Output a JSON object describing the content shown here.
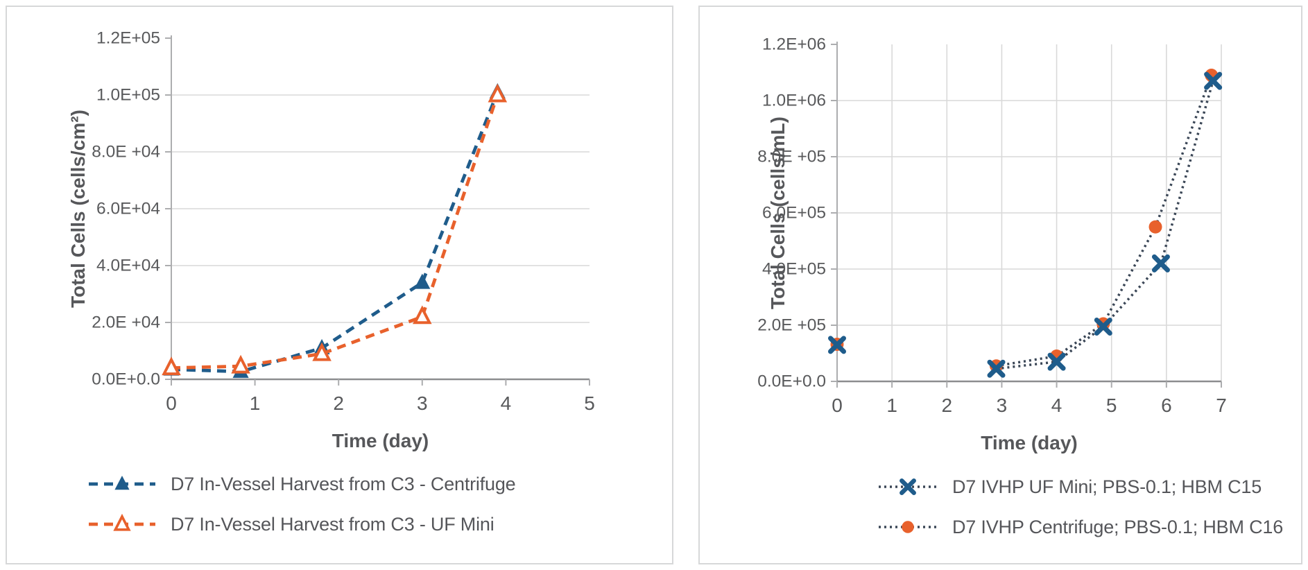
{
  "figure": {
    "description": "Two cell-growth line charts with bottom legends",
    "panels": [
      "left",
      "right"
    ]
  },
  "chart_data": [
    {
      "type": "line",
      "title": "",
      "xlabel": "Time (day)",
      "ylabel": "Total Cells (cells/cm²)",
      "xlim": [
        0,
        5
      ],
      "ylim": [
        0,
        120000
      ],
      "xticks": [
        {
          "v": 0,
          "label": "0"
        },
        {
          "v": 1,
          "label": "1"
        },
        {
          "v": 2,
          "label": "2"
        },
        {
          "v": 3,
          "label": "3"
        },
        {
          "v": 4,
          "label": "4"
        },
        {
          "v": 5,
          "label": "5"
        }
      ],
      "yticks": [
        {
          "v": 0,
          "label": "0.0E+0.0"
        },
        {
          "v": 20000,
          "label": "2.0E +04"
        },
        {
          "v": 40000,
          "label": "4.0E+04"
        },
        {
          "v": 60000,
          "label": "6.0E+04"
        },
        {
          "v": 80000,
          "label": "8.0E +04"
        },
        {
          "v": 100000,
          "label": "1.0E+05"
        },
        {
          "v": 120000,
          "label": "1.2E+05"
        }
      ],
      "grid": {
        "horizontal": true,
        "vertical": false
      },
      "legend_position": "bottom",
      "draw_order": [
        0,
        1
      ],
      "series": [
        {
          "name": "D7 In-Vessel Harvest from C3 - Centrifuge",
          "color": "#1F5C8B",
          "line_color": "#1F5C8B",
          "line_style": "dashed",
          "marker": "triangle-filled",
          "line_start_index": 0,
          "points": [
            [
              0,
              3500
            ],
            [
              0.83,
              2700
            ],
            [
              1.8,
              11000
            ],
            [
              3.0,
              34000
            ],
            [
              3.9,
              101000
            ]
          ]
        },
        {
          "name": "D7 In-Vessel Harvest from C3 - UF Mini",
          "color": "#E8612C",
          "line_color": "#E8612C",
          "line_style": "dashed",
          "marker": "triangle-open",
          "line_start_index": 0,
          "points": [
            [
              0,
              4000
            ],
            [
              0.83,
              4600
            ],
            [
              1.8,
              9000
            ],
            [
              3.0,
              22000
            ],
            [
              3.9,
              100000
            ]
          ]
        }
      ]
    },
    {
      "type": "line",
      "title": "",
      "xlabel": "Time (day)",
      "ylabel": "Total Cells (cells/mL)",
      "xlim": [
        0,
        7
      ],
      "ylim": [
        0,
        1200000
      ],
      "xticks": [
        {
          "v": 0,
          "label": "0"
        },
        {
          "v": 1,
          "label": "1"
        },
        {
          "v": 2,
          "label": "2"
        },
        {
          "v": 3,
          "label": "3"
        },
        {
          "v": 4,
          "label": "4"
        },
        {
          "v": 5,
          "label": "5"
        },
        {
          "v": 6,
          "label": "6"
        },
        {
          "v": 7,
          "label": "7"
        }
      ],
      "yticks": [
        {
          "v": 0,
          "label": "0.0E+0.0"
        },
        {
          "v": 200000,
          "label": "2.0E +05"
        },
        {
          "v": 400000,
          "label": "4.0E+05"
        },
        {
          "v": 600000,
          "label": "6.0E+05"
        },
        {
          "v": 800000,
          "label": "8.0E +05"
        },
        {
          "v": 1000000,
          "label": "1.0E+06"
        },
        {
          "v": 1200000,
          "label": "1.2E+06"
        }
      ],
      "grid": {
        "horizontal": true,
        "vertical": true
      },
      "legend_position": "bottom",
      "draw_order": [
        1,
        0
      ],
      "series": [
        {
          "name": "D7 IVHP UF Mini; PBS-0.1; HBM C15",
          "color": "#1F5C8B",
          "line_color": "#3A4656",
          "line_style": "dotted",
          "marker": "x",
          "line_start_index": 1,
          "points": [
            [
              0,
              130000
            ],
            [
              2.9,
              45000
            ],
            [
              4.0,
              70000
            ],
            [
              4.85,
              195000
            ],
            [
              5.9,
              420000
            ],
            [
              6.85,
              1070000
            ]
          ]
        },
        {
          "name": "D7 IVHP Centrifuge; PBS-0.1; HBM C16",
          "color": "#E8612C",
          "line_color": "#3A4656",
          "line_style": "dotted",
          "marker": "circle",
          "line_start_index": 1,
          "points": [
            [
              0,
              132000
            ],
            [
              2.9,
              55000
            ],
            [
              4.0,
              90000
            ],
            [
              4.85,
              205000
            ],
            [
              5.8,
              550000
            ],
            [
              6.82,
              1090000
            ]
          ]
        }
      ]
    }
  ],
  "colors": {
    "grid": "#D9D9D9",
    "axis_y": "#ACADAF",
    "axis_x": "#8C8D8F",
    "tick_text": "#58595B",
    "title_text": "#56575A",
    "legend_text": "#55565A",
    "panel_border": "#D7D8D9",
    "background": "#FFFFFF",
    "series_blue": "#1F5C8B",
    "series_orange": "#E8612C",
    "dotted_line": "#3A4656"
  }
}
